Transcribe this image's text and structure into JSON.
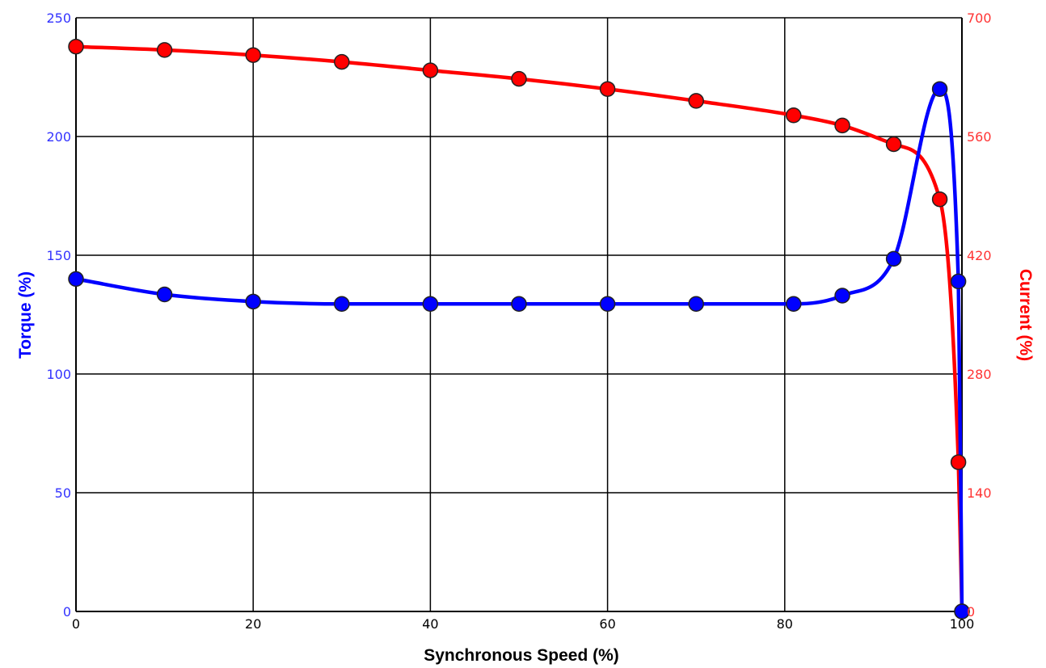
{
  "chart_data": {
    "type": "line",
    "xlabel": "Synchronous Speed (%)",
    "xlim": [
      0,
      100
    ],
    "x_ticks": [
      "0",
      "20",
      "40",
      "60",
      "80",
      "100"
    ],
    "ylabel_left": "Torque (%)",
    "ylim_left": [
      0,
      250
    ],
    "y_ticks_left": [
      "0",
      "50",
      "100",
      "150",
      "200",
      "250"
    ],
    "ylabel_right": "Current (%)",
    "ylim_right": [
      0,
      700
    ],
    "y_ticks_right": [
      "0",
      "140",
      "280",
      "420",
      "560",
      "700"
    ],
    "grid": true,
    "colors": {
      "torque": "#0000ff",
      "current": "#ff0000",
      "left_axis_text": "#3333ff",
      "right_axis_text": "#ff3333"
    },
    "series": [
      {
        "axis": "left",
        "x": [
          0,
          10,
          20,
          30,
          40,
          50,
          60,
          70,
          81,
          86.5,
          92.3,
          97.5,
          99.6,
          100
        ],
        "y": [
          140,
          133.5,
          130.5,
          129.5,
          129.5,
          129.5,
          129.5,
          129.5,
          129.5,
          133,
          148.5,
          220,
          139,
          0
        ]
      },
      {
        "axis": "right",
        "x": [
          0,
          10,
          20,
          30,
          40,
          50,
          60,
          70,
          81,
          86.5,
          92.3,
          97.5,
          99.6,
          100
        ],
        "y": [
          666,
          662,
          656,
          648,
          638,
          628,
          616,
          602,
          585,
          573,
          551,
          486,
          176,
          0
        ]
      }
    ]
  }
}
